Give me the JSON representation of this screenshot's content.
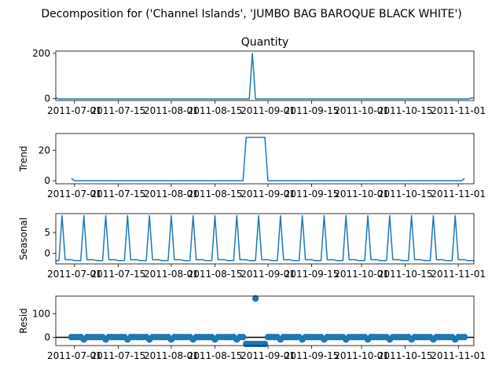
{
  "figure": {
    "suptitle": "Decomposition for ('Channel Islands', 'JUMBO  BAG BAROQUE BLACK WHITE')"
  },
  "chart_data": [
    {
      "id": "observed",
      "type": "line",
      "title": "Quantity",
      "ylabel": "",
      "xlim": [
        "2011-06-25",
        "2011-11-06"
      ],
      "ylim": [
        -8,
        210
      ],
      "yticks": [
        0,
        200
      ],
      "xticks": [
        "2011-07-01",
        "2011-07-15",
        "2011-08-01",
        "2011-08-15",
        "2011-09-01",
        "2011-09-15",
        "2011-10-01",
        "2011-10-15",
        "2011-11-01"
      ],
      "baseline": -1,
      "segments": [
        {
          "x": [
            "2011-06-25",
            "2011-06-26"
          ],
          "y": [
            4,
            -1
          ]
        },
        {
          "x": [
            "2011-08-26",
            "2011-08-27",
            "2011-08-28"
          ],
          "y": [
            -1,
            200,
            -1
          ]
        },
        {
          "x": [
            "2011-11-04",
            "2011-11-06"
          ],
          "y": [
            -1,
            5
          ]
        }
      ],
      "style": "line"
    },
    {
      "id": "trend",
      "type": "line",
      "title": "",
      "ylabel": "Trend",
      "xlim": [
        "2011-06-25",
        "2011-11-06"
      ],
      "ylim": [
        -2,
        31
      ],
      "yticks": [
        0,
        20
      ],
      "xticks": [
        "2011-07-01",
        "2011-07-15",
        "2011-08-01",
        "2011-08-15",
        "2011-09-01",
        "2011-09-15",
        "2011-10-01",
        "2011-10-15",
        "2011-11-01"
      ],
      "x": [
        "2011-06-30",
        "2011-07-01",
        "2011-08-24",
        "2011-08-25",
        "2011-08-31",
        "2011-09-01",
        "2011-11-01",
        "2011-11-02",
        "2011-11-03"
      ],
      "y": [
        1.5,
        0,
        0,
        28.5,
        28.5,
        0,
        0,
        0,
        1.5
      ],
      "style": "line"
    },
    {
      "id": "seasonal",
      "type": "line",
      "title": "",
      "ylabel": "Seasonal",
      "xlim": [
        "2011-06-25",
        "2011-11-06"
      ],
      "ylim": [
        -2.5,
        9.5
      ],
      "yticks": [
        0,
        5
      ],
      "xticks": [
        "2011-07-01",
        "2011-07-15",
        "2011-08-01",
        "2011-08-15",
        "2011-09-01",
        "2011-09-15",
        "2011-10-01",
        "2011-10-15",
        "2011-11-01"
      ],
      "period_days": 7,
      "first_peak": "2011-06-27",
      "pattern": [
        9,
        -1.5,
        -1.5,
        -1.5,
        -1.7,
        -1.7,
        -1.7
      ],
      "style": "line"
    },
    {
      "id": "resid",
      "type": "scatter",
      "title": "",
      "ylabel": "Resid",
      "xlim": [
        "2011-06-25",
        "2011-11-06"
      ],
      "ylim": [
        -35,
        175
      ],
      "yticks": [
        0,
        100
      ],
      "xticks": [
        "2011-07-01",
        "2011-07-15",
        "2011-08-01",
        "2011-08-15",
        "2011-09-01",
        "2011-09-15",
        "2011-10-01",
        "2011-10-15",
        "2011-11-01"
      ],
      "baseline_line": 0,
      "x_start": "2011-06-30",
      "x_end": "2011-11-03",
      "dip_days": [
        "2011-07-04",
        "2011-07-11",
        "2011-07-18",
        "2011-07-25",
        "2011-08-01",
        "2011-08-08",
        "2011-08-15",
        "2011-08-22",
        "2011-09-05",
        "2011-09-12",
        "2011-09-19",
        "2011-09-26",
        "2011-10-03",
        "2011-10-10",
        "2011-10-17",
        "2011-10-24",
        "2011-10-31"
      ],
      "normal_value": 1,
      "dip_value": -9,
      "spike_range": [
        "2011-08-25",
        "2011-08-31"
      ],
      "spike_value": -28,
      "outlier": {
        "x": "2011-08-28",
        "y": 165
      },
      "style": "scatter"
    }
  ]
}
